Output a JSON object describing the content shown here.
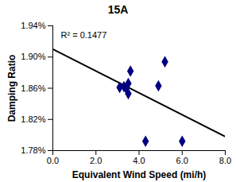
{
  "chart_data": {
    "type": "scatter",
    "title": "15A",
    "x_label": "Equivalent Wind Speed (mi/h)",
    "y_label": "Damping Ratio",
    "annotation": "R² = 0.1477",
    "x": [
      3.1,
      3.3,
      3.4,
      3.5,
      3.5,
      3.6,
      4.3,
      4.9,
      5.2,
      6.0
    ],
    "values": [
      1.861,
      1.862,
      1.86,
      1.853,
      1.866,
      1.882,
      1.792,
      1.863,
      1.894,
      1.792
    ],
    "color": "#000080",
    "marker": "diamond",
    "trendline": {
      "x": [
        0,
        8
      ],
      "values": [
        1.91,
        1.798
      ],
      "color": "#000000"
    },
    "xlim": [
      0,
      8
    ],
    "xticks": [
      {
        "value": 0,
        "label": "0.0"
      },
      {
        "value": 2,
        "label": "2.0"
      },
      {
        "value": 4,
        "label": "4.0"
      },
      {
        "value": 6,
        "label": "6.0"
      },
      {
        "value": 8,
        "label": "8.0"
      }
    ],
    "ylim": [
      1.78,
      1.94
    ],
    "yticks": [
      {
        "value": 1.78,
        "label": "1.78%"
      },
      {
        "value": 1.82,
        "label": "1.82%"
      },
      {
        "value": 1.86,
        "label": "1.86%"
      },
      {
        "value": 1.9,
        "label": "1.90%"
      },
      {
        "value": 1.94,
        "label": "1.94%"
      }
    ],
    "grid": false
  }
}
